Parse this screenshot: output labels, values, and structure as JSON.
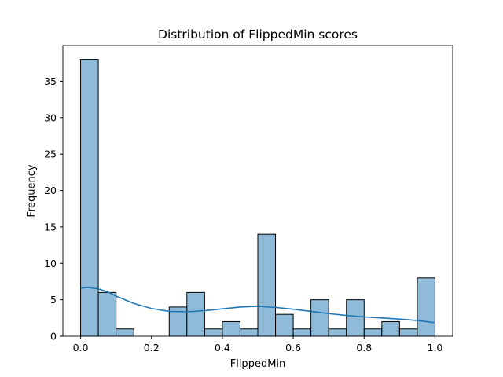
{
  "chart_data": {
    "type": "bar",
    "title": "Distribution of FlippedMin scores",
    "xlabel": "FlippedMin",
    "ylabel": "Frequency",
    "xlim": [
      -0.05,
      1.05
    ],
    "ylim": [
      0,
      39.9
    ],
    "bin_width": 0.05,
    "bins_x": [
      0.0,
      0.05,
      0.1,
      0.15,
      0.2,
      0.25,
      0.3,
      0.35,
      0.4,
      0.45,
      0.5,
      0.55,
      0.6,
      0.65,
      0.7,
      0.75,
      0.8,
      0.85,
      0.9,
      0.95
    ],
    "values": [
      38,
      6,
      1,
      0,
      0,
      4,
      6,
      1,
      2,
      1,
      14,
      3,
      1,
      5,
      1,
      5,
      1,
      2,
      1,
      8
    ],
    "xticks": [
      0.0,
      0.2,
      0.4,
      0.6,
      0.8,
      1.0
    ],
    "xtick_labels": [
      "0.0",
      "0.2",
      "0.4",
      "0.6",
      "0.8",
      "1.0"
    ],
    "yticks": [
      0,
      5,
      10,
      15,
      20,
      25,
      30,
      35
    ],
    "ytick_labels": [
      "0",
      "5",
      "10",
      "15",
      "20",
      "25",
      "30",
      "35"
    ],
    "kde": {
      "x": [
        0.0,
        0.02,
        0.05,
        0.08,
        0.1,
        0.15,
        0.2,
        0.25,
        0.3,
        0.35,
        0.4,
        0.45,
        0.5,
        0.55,
        0.6,
        0.65,
        0.7,
        0.75,
        0.8,
        0.85,
        0.9,
        0.95,
        1.0
      ],
      "y": [
        6.6,
        6.7,
        6.5,
        6.0,
        5.5,
        4.5,
        3.8,
        3.4,
        3.35,
        3.5,
        3.75,
        4.0,
        4.1,
        3.95,
        3.7,
        3.4,
        3.1,
        2.85,
        2.65,
        2.5,
        2.35,
        2.15,
        1.85
      ]
    },
    "grid": false,
    "colors": {
      "bar_fill": "#8fbbd9",
      "bar_edge": "#000000",
      "kde_line": "#1f77b4"
    }
  }
}
